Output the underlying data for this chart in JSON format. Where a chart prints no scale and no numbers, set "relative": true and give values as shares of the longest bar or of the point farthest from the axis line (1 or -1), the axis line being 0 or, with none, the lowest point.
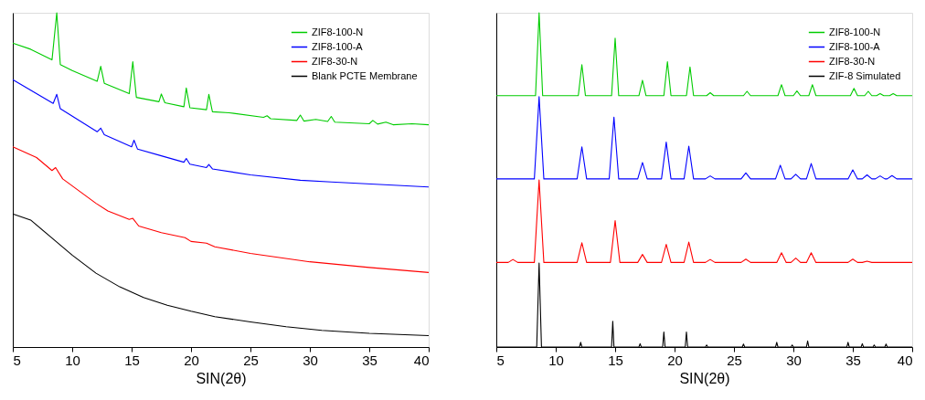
{
  "chart_data": [
    {
      "type": "line",
      "relative": true,
      "xlabel": "SIN(2θ)",
      "xlim": [
        5,
        40
      ],
      "xticks": [
        5,
        10,
        15,
        20,
        25,
        30,
        35,
        40
      ],
      "legend": "top right",
      "tick_labels": "x",
      "series": [
        {
          "name": "ZIF8-100-N",
          "color": "#00cc00",
          "x": [
            5,
            6.5,
            8.3,
            8.7,
            9.0,
            10,
            12.1,
            12.4,
            12.7,
            14.8,
            15.1,
            15.4,
            17.3,
            17.5,
            17.8,
            19.4,
            19.6,
            19.9,
            21.3,
            21.5,
            21.8,
            23.2,
            26.1,
            26.4,
            26.7,
            28.9,
            29.2,
            29.5,
            30.5,
            31.5,
            31.8,
            32.1,
            35,
            35.3,
            35.7,
            36.4,
            37,
            38.6,
            40
          ],
          "values": [
            0.909,
            0.891,
            0.859,
            1.0,
            0.845,
            0.827,
            0.795,
            0.84,
            0.789,
            0.758,
            0.854,
            0.747,
            0.734,
            0.757,
            0.731,
            0.719,
            0.775,
            0.716,
            0.71,
            0.756,
            0.704,
            0.701,
            0.687,
            0.692,
            0.683,
            0.678,
            0.694,
            0.676,
            0.681,
            0.675,
            0.69,
            0.673,
            0.668,
            0.678,
            0.667,
            0.673,
            0.665,
            0.668,
            0.665
          ]
        },
        {
          "name": "ZIF8-100-A",
          "color": "#0000ff",
          "x": [
            5,
            8.4,
            8.7,
            9.0,
            12.1,
            12.4,
            12.7,
            15.0,
            15.2,
            15.5,
            17.5,
            19.4,
            19.6,
            19.9,
            21.3,
            21.5,
            21.8,
            25,
            29.2,
            31.8,
            40
          ],
          "values": [
            0.8,
            0.729,
            0.756,
            0.713,
            0.644,
            0.655,
            0.635,
            0.599,
            0.619,
            0.592,
            0.572,
            0.553,
            0.564,
            0.547,
            0.537,
            0.546,
            0.533,
            0.515,
            0.499,
            0.494,
            0.479
          ]
        },
        {
          "name": "ZIF8-30-N",
          "color": "#ff0000",
          "x": [
            5,
            7,
            8.3,
            8.6,
            9.2,
            12,
            13,
            14.8,
            15.1,
            15.6,
            17.5,
            19.5,
            20,
            21.3,
            22,
            25,
            30,
            35,
            40
          ],
          "values": [
            0.599,
            0.567,
            0.528,
            0.537,
            0.503,
            0.43,
            0.407,
            0.382,
            0.385,
            0.362,
            0.342,
            0.327,
            0.316,
            0.311,
            0.3,
            0.28,
            0.255,
            0.238,
            0.223
          ]
        },
        {
          "name": "Blank PCTE Membrane",
          "color": "#000000",
          "x": [
            5,
            6.5,
            8,
            10,
            12,
            14,
            16,
            18,
            20,
            22,
            25,
            28,
            31,
            35,
            40
          ],
          "values": [
            0.398,
            0.38,
            0.335,
            0.275,
            0.221,
            0.18,
            0.148,
            0.125,
            0.107,
            0.091,
            0.075,
            0.061,
            0.05,
            0.041,
            0.034
          ]
        }
      ]
    },
    {
      "type": "line",
      "relative": true,
      "xlabel": "SIN(2θ)",
      "xlim": [
        5,
        40
      ],
      "xticks": [
        5,
        10,
        15,
        20,
        25,
        30,
        35,
        40
      ],
      "legend": "top right",
      "tick_labels": "x",
      "series": [
        {
          "name": "ZIF8-100-N",
          "color": "#00cc00",
          "x": [
            5,
            8.3,
            8.6,
            8.9,
            11.9,
            12.2,
            12.5,
            14.7,
            15.0,
            15.3,
            17.0,
            17.3,
            17.6,
            19.1,
            19.4,
            19.7,
            21.0,
            21.3,
            21.6,
            22.7,
            23.0,
            23.3,
            25.8,
            26.1,
            26.4,
            28.7,
            29.0,
            29.3,
            30.0,
            30.3,
            30.6,
            31.3,
            31.6,
            31.9,
            34.8,
            35.1,
            35.4,
            36.0,
            36.3,
            36.6,
            37.0,
            37.3,
            37.6,
            38.1,
            38.4,
            38.7,
            40
          ],
          "values": [
            0.752,
            0.752,
            1.0,
            0.752,
            0.752,
            0.845,
            0.752,
            0.752,
            0.924,
            0.752,
            0.752,
            0.798,
            0.752,
            0.752,
            0.854,
            0.752,
            0.752,
            0.838,
            0.752,
            0.752,
            0.761,
            0.752,
            0.752,
            0.765,
            0.752,
            0.752,
            0.785,
            0.752,
            0.752,
            0.766,
            0.752,
            0.752,
            0.785,
            0.752,
            0.752,
            0.774,
            0.752,
            0.752,
            0.765,
            0.752,
            0.752,
            0.758,
            0.752,
            0.752,
            0.758,
            0.752,
            0.752
          ]
        },
        {
          "name": "ZIF8-100-A",
          "color": "#0000ff",
          "x": [
            5,
            8.2,
            8.6,
            9.0,
            11.8,
            12.2,
            12.6,
            14.5,
            14.9,
            15.3,
            16.9,
            17.3,
            17.7,
            18.9,
            19.3,
            19.7,
            20.8,
            21.2,
            21.6,
            22.6,
            23.0,
            23.4,
            25.6,
            26.0,
            26.4,
            28.5,
            28.9,
            29.3,
            29.8,
            30.2,
            30.6,
            31.1,
            31.5,
            31.9,
            34.6,
            35.0,
            35.4,
            35.8,
            36.2,
            36.6,
            36.9,
            37.3,
            37.7,
            37.9,
            38.3,
            38.7,
            40
          ],
          "values": [
            0.503,
            0.503,
            0.749,
            0.503,
            0.503,
            0.599,
            0.503,
            0.503,
            0.688,
            0.503,
            0.503,
            0.552,
            0.503,
            0.503,
            0.613,
            0.503,
            0.503,
            0.601,
            0.503,
            0.503,
            0.512,
            0.503,
            0.503,
            0.521,
            0.503,
            0.503,
            0.544,
            0.503,
            0.503,
            0.517,
            0.503,
            0.503,
            0.549,
            0.503,
            0.503,
            0.53,
            0.503,
            0.503,
            0.515,
            0.503,
            0.503,
            0.512,
            0.503,
            0.503,
            0.513,
            0.503,
            0.503
          ]
        },
        {
          "name": "ZIF8-30-N",
          "color": "#ff0000",
          "x": [
            5,
            6.0,
            6.4,
            6.8,
            8.2,
            8.6,
            9.0,
            11.8,
            12.2,
            12.6,
            14.6,
            15.0,
            15.4,
            16.9,
            17.3,
            17.7,
            18.9,
            19.3,
            19.7,
            20.8,
            21.2,
            21.6,
            22.6,
            23.0,
            23.4,
            25.6,
            26.0,
            26.4,
            28.6,
            29.0,
            29.4,
            29.8,
            30.2,
            30.6,
            31.1,
            31.5,
            31.9,
            34.6,
            35.0,
            35.4,
            35.8,
            36.2,
            36.6,
            40
          ],
          "values": [
            0.253,
            0.253,
            0.262,
            0.253,
            0.253,
            0.5,
            0.253,
            0.253,
            0.312,
            0.253,
            0.253,
            0.378,
            0.253,
            0.253,
            0.277,
            0.253,
            0.253,
            0.307,
            0.253,
            0.253,
            0.314,
            0.253,
            0.253,
            0.262,
            0.253,
            0.253,
            0.263,
            0.253,
            0.253,
            0.282,
            0.253,
            0.253,
            0.266,
            0.253,
            0.253,
            0.282,
            0.253,
            0.253,
            0.263,
            0.253,
            0.253,
            0.257,
            0.253,
            0.253
          ]
        },
        {
          "name": "ZIF-8 Simulated",
          "color": "#000000",
          "x": [
            5,
            8.4,
            8.6,
            8.8,
            12.0,
            12.1,
            12.2,
            14.7,
            14.8,
            14.9,
            17.0,
            17.1,
            17.2,
            19.0,
            19.1,
            19.2,
            20.9,
            21.0,
            21.1,
            22.6,
            22.7,
            22.8,
            25.7,
            25.8,
            25.9,
            28.5,
            28.6,
            28.7,
            29.8,
            29.9,
            30.0,
            31.1,
            31.2,
            31.3,
            34.5,
            34.6,
            34.7,
            35.7,
            35.8,
            35.9,
            36.7,
            36.8,
            36.9,
            37.7,
            37.8,
            37.9,
            40
          ],
          "values": [
            0,
            0,
            0.251,
            0,
            0,
            0.014,
            0,
            0,
            0.077,
            0,
            0,
            0.01,
            0,
            0,
            0.045,
            0,
            0,
            0.045,
            0,
            0,
            0.006,
            0,
            0,
            0.009,
            0,
            0,
            0.014,
            0,
            0,
            0.006,
            0,
            0,
            0.018,
            0,
            0,
            0.014,
            0,
            0,
            0.01,
            0,
            0,
            0.006,
            0,
            0,
            0.009,
            0,
            0
          ]
        }
      ]
    }
  ]
}
